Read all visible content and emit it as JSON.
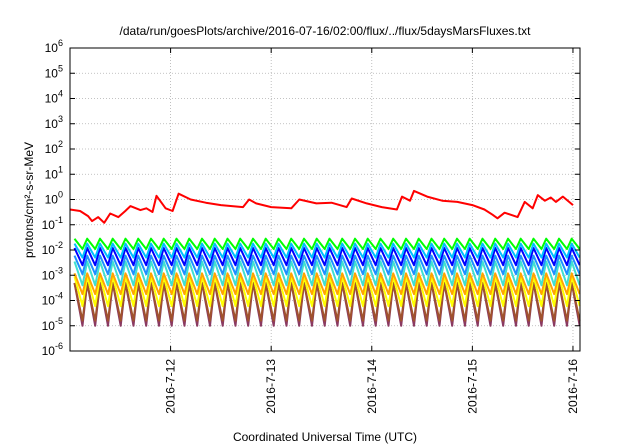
{
  "chart_data": {
    "type": "line",
    "title": "/data/run/goesPlots/archive/2016-07-16/02:00/flux/../flux/5daysMarsFluxes.txt",
    "xlabel": "Coordinated Universal Time (UTC)",
    "ylabel": "protons/cm²-s-sr-MeV",
    "yscale": "log",
    "ylim": [
      1e-06,
      1000000.0
    ],
    "yticks": [
      {
        "value": -6,
        "base": "10",
        "exp": "-6"
      },
      {
        "value": -5,
        "base": "10",
        "exp": "-5"
      },
      {
        "value": -4,
        "base": "10",
        "exp": "-4"
      },
      {
        "value": -3,
        "base": "10",
        "exp": "-3"
      },
      {
        "value": -2,
        "base": "10",
        "exp": "-2"
      },
      {
        "value": -1,
        "base": "10",
        "exp": "-1"
      },
      {
        "value": 0,
        "base": "10",
        "exp": "0"
      },
      {
        "value": 1,
        "base": "10",
        "exp": "1"
      },
      {
        "value": 2,
        "base": "10",
        "exp": "2"
      },
      {
        "value": 3,
        "base": "10",
        "exp": "3"
      },
      {
        "value": 4,
        "base": "10",
        "exp": "4"
      },
      {
        "value": 5,
        "base": "10",
        "exp": "5"
      },
      {
        "value": 6,
        "base": "10",
        "exp": "6"
      }
    ],
    "xlim": [
      "2016-07-11 02:00",
      "2016-07-16 02:00"
    ],
    "xticks": [
      {
        "label": "2016-7-12",
        "day": 1.0
      },
      {
        "label": "2016-7-13",
        "day": 2.0
      },
      {
        "label": "2016-7-14",
        "day": 3.0
      },
      {
        "label": "2016-7-15",
        "day": 4.0
      },
      {
        "label": "2016-7-16",
        "day": 5.0
      }
    ],
    "grid": true,
    "series": [
      {
        "color": "#ff0000",
        "values": [
          [
            0.0,
            0.4
          ],
          [
            0.1,
            0.35
          ],
          [
            0.18,
            0.22
          ],
          [
            0.22,
            0.14
          ],
          [
            0.28,
            0.2
          ],
          [
            0.34,
            0.12
          ],
          [
            0.4,
            0.28
          ],
          [
            0.48,
            0.2
          ],
          [
            0.55,
            0.35
          ],
          [
            0.6,
            0.55
          ],
          [
            0.7,
            0.38
          ],
          [
            0.76,
            0.45
          ],
          [
            0.82,
            0.32
          ],
          [
            0.86,
            1.4
          ],
          [
            0.95,
            0.45
          ],
          [
            1.02,
            0.35
          ],
          [
            1.08,
            1.7
          ],
          [
            1.2,
            1.0
          ],
          [
            1.35,
            0.75
          ],
          [
            1.5,
            0.6
          ],
          [
            1.72,
            0.5
          ],
          [
            1.78,
            1.0
          ],
          [
            1.85,
            0.7
          ],
          [
            2.0,
            0.5
          ],
          [
            2.2,
            0.45
          ],
          [
            2.28,
            1.0
          ],
          [
            2.45,
            0.7
          ],
          [
            2.6,
            0.75
          ],
          [
            2.75,
            0.5
          ],
          [
            2.8,
            1.1
          ],
          [
            2.95,
            0.7
          ],
          [
            3.1,
            0.5
          ],
          [
            3.25,
            0.4
          ],
          [
            3.3,
            1.3
          ],
          [
            3.38,
            0.9
          ],
          [
            3.42,
            2.2
          ],
          [
            3.55,
            1.3
          ],
          [
            3.7,
            0.9
          ],
          [
            3.85,
            0.8
          ],
          [
            4.0,
            0.6
          ],
          [
            4.12,
            0.4
          ],
          [
            4.2,
            0.25
          ],
          [
            4.25,
            0.18
          ],
          [
            4.32,
            0.3
          ],
          [
            4.45,
            0.2
          ],
          [
            4.52,
            0.8
          ],
          [
            4.6,
            0.45
          ],
          [
            4.65,
            1.5
          ],
          [
            4.72,
            0.9
          ],
          [
            4.78,
            1.2
          ],
          [
            4.83,
            0.8
          ],
          [
            4.9,
            1.3
          ],
          [
            5.0,
            0.6
          ]
        ]
      },
      {
        "color": "#00ff00",
        "pattern": {
          "peak": 0.028,
          "trough": 0.011,
          "periods": 40
        }
      },
      {
        "color": "#00bfff",
        "pattern": {
          "peak": 0.018,
          "trough": 0.005,
          "periods": 40
        }
      },
      {
        "color": "#0000ff",
        "pattern": {
          "peak": 0.012,
          "trough": 0.0025,
          "periods": 40
        }
      },
      {
        "color": "#1e90ff",
        "pattern": {
          "peak": 0.006,
          "trough": 0.0011,
          "periods": 40
        }
      },
      {
        "color": "#40e0d0",
        "pattern": {
          "peak": 0.0035,
          "trough": 0.0004,
          "periods": 40
        }
      },
      {
        "color": "#ffa500",
        "pattern": {
          "peak": 0.0012,
          "trough": 0.00018,
          "periods": 40
        }
      },
      {
        "color": "#ffff00",
        "pattern": {
          "peak": 0.0009,
          "trough": 6e-05,
          "periods": 40
        }
      },
      {
        "color": "#a0522d",
        "pattern": {
          "peak": 0.0005,
          "trough": 1.6e-05,
          "periods": 40
        }
      },
      {
        "color": "#8b3a62",
        "pattern": {
          "peak": 0.0005,
          "trough": 1e-05,
          "periods": 40
        }
      }
    ]
  }
}
